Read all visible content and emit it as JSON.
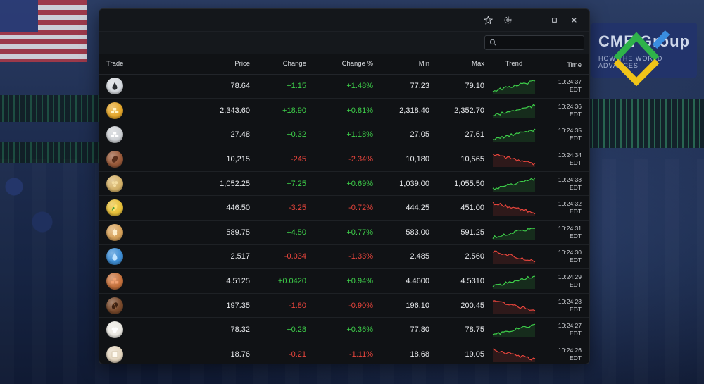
{
  "window": {
    "controls": [
      "star-icon",
      "gear-icon",
      "minimize-icon",
      "maximize-icon",
      "close-icon"
    ]
  },
  "search": {
    "placeholder": "",
    "value": ""
  },
  "columns": {
    "trade": "Trade",
    "price": "Price",
    "change": "Change",
    "change_pct": "Change %",
    "min": "Min",
    "max": "Max",
    "trend": "Trend",
    "time": "Time"
  },
  "colors": {
    "up": "#3ecf4a",
    "down": "#e8453c"
  },
  "rows": [
    {
      "icon": "oil-drop-icon",
      "price": "78.64",
      "change": "+1.15",
      "change_pct": "+1.48%",
      "min": "77.23",
      "max": "79.10",
      "trend": "up",
      "time": "10:24:37",
      "tz": "EDT",
      "icon_color": "#d7dbe0"
    },
    {
      "icon": "gold-bars-icon",
      "price": "2,343.60",
      "change": "+18.90",
      "change_pct": "+0.81%",
      "min": "2,318.40",
      "max": "2,352.70",
      "trend": "up",
      "time": "10:24:36",
      "tz": "EDT",
      "icon_color": "#e6a82c"
    },
    {
      "icon": "silver-bars-icon",
      "price": "27.48",
      "change": "+0.32",
      "change_pct": "+1.18%",
      "min": "27.05",
      "max": "27.61",
      "trend": "up",
      "time": "10:24:35",
      "tz": "EDT",
      "icon_color": "#cfd2d6"
    },
    {
      "icon": "cocoa-bean-icon",
      "price": "10,215",
      "change": "-245",
      "change_pct": "-2.34%",
      "min": "10,180",
      "max": "10,565",
      "trend": "down",
      "time": "10:24:34",
      "tz": "EDT",
      "icon_color": "#9a5a3a"
    },
    {
      "icon": "soybeans-icon",
      "price": "1,052.25",
      "change": "+7.25",
      "change_pct": "+0.69%",
      "min": "1,039.00",
      "max": "1,055.50",
      "trend": "up",
      "time": "10:24:33",
      "tz": "EDT",
      "icon_color": "#d6b36a"
    },
    {
      "icon": "corn-icon",
      "price": "446.50",
      "change": "-3.25",
      "change_pct": "-0.72%",
      "min": "444.25",
      "max": "451.00",
      "trend": "down",
      "time": "10:24:32",
      "tz": "EDT",
      "icon_color": "#e9c13a"
    },
    {
      "icon": "wheat-icon",
      "price": "589.75",
      "change": "+4.50",
      "change_pct": "+0.77%",
      "min": "583.00",
      "max": "591.25",
      "trend": "up",
      "time": "10:24:31",
      "tz": "EDT",
      "icon_color": "#d9a45c"
    },
    {
      "icon": "water-drop-icon",
      "price": "2.517",
      "change": "-0.034",
      "change_pct": "-1.33%",
      "min": "2.485",
      "max": "2.560",
      "trend": "down",
      "time": "10:24:30",
      "tz": "EDT",
      "icon_color": "#3f8fd6"
    },
    {
      "icon": "copper-bars-icon",
      "price": "4.5125",
      "change": "+0.0420",
      "change_pct": "+0.94%",
      "min": "4.4600",
      "max": "4.5310",
      "trend": "up",
      "time": "10:24:29",
      "tz": "EDT",
      "icon_color": "#c8733e"
    },
    {
      "icon": "coffee-bean-icon",
      "price": "197.35",
      "change": "-1.80",
      "change_pct": "-0.90%",
      "min": "196.10",
      "max": "200.45",
      "trend": "down",
      "time": "10:24:28",
      "tz": "EDT",
      "icon_color": "#7a4a2c"
    },
    {
      "icon": "cotton-icon",
      "price": "78.32",
      "change": "+0.28",
      "change_pct": "+0.36%",
      "min": "77.80",
      "max": "78.75",
      "trend": "up",
      "time": "10:24:27",
      "tz": "EDT",
      "icon_color": "#eceae4"
    },
    {
      "icon": "sugar-icon",
      "price": "18.76",
      "change": "-0.21",
      "change_pct": "-1.11%",
      "min": "18.68",
      "max": "19.05",
      "trend": "down",
      "time": "10:24:26",
      "tz": "EDT",
      "icon_color": "#e6d8c2"
    }
  ],
  "background": {
    "sign_text": "CME Group",
    "sign_sub": "HOW THE WORLD ADVANCES"
  }
}
